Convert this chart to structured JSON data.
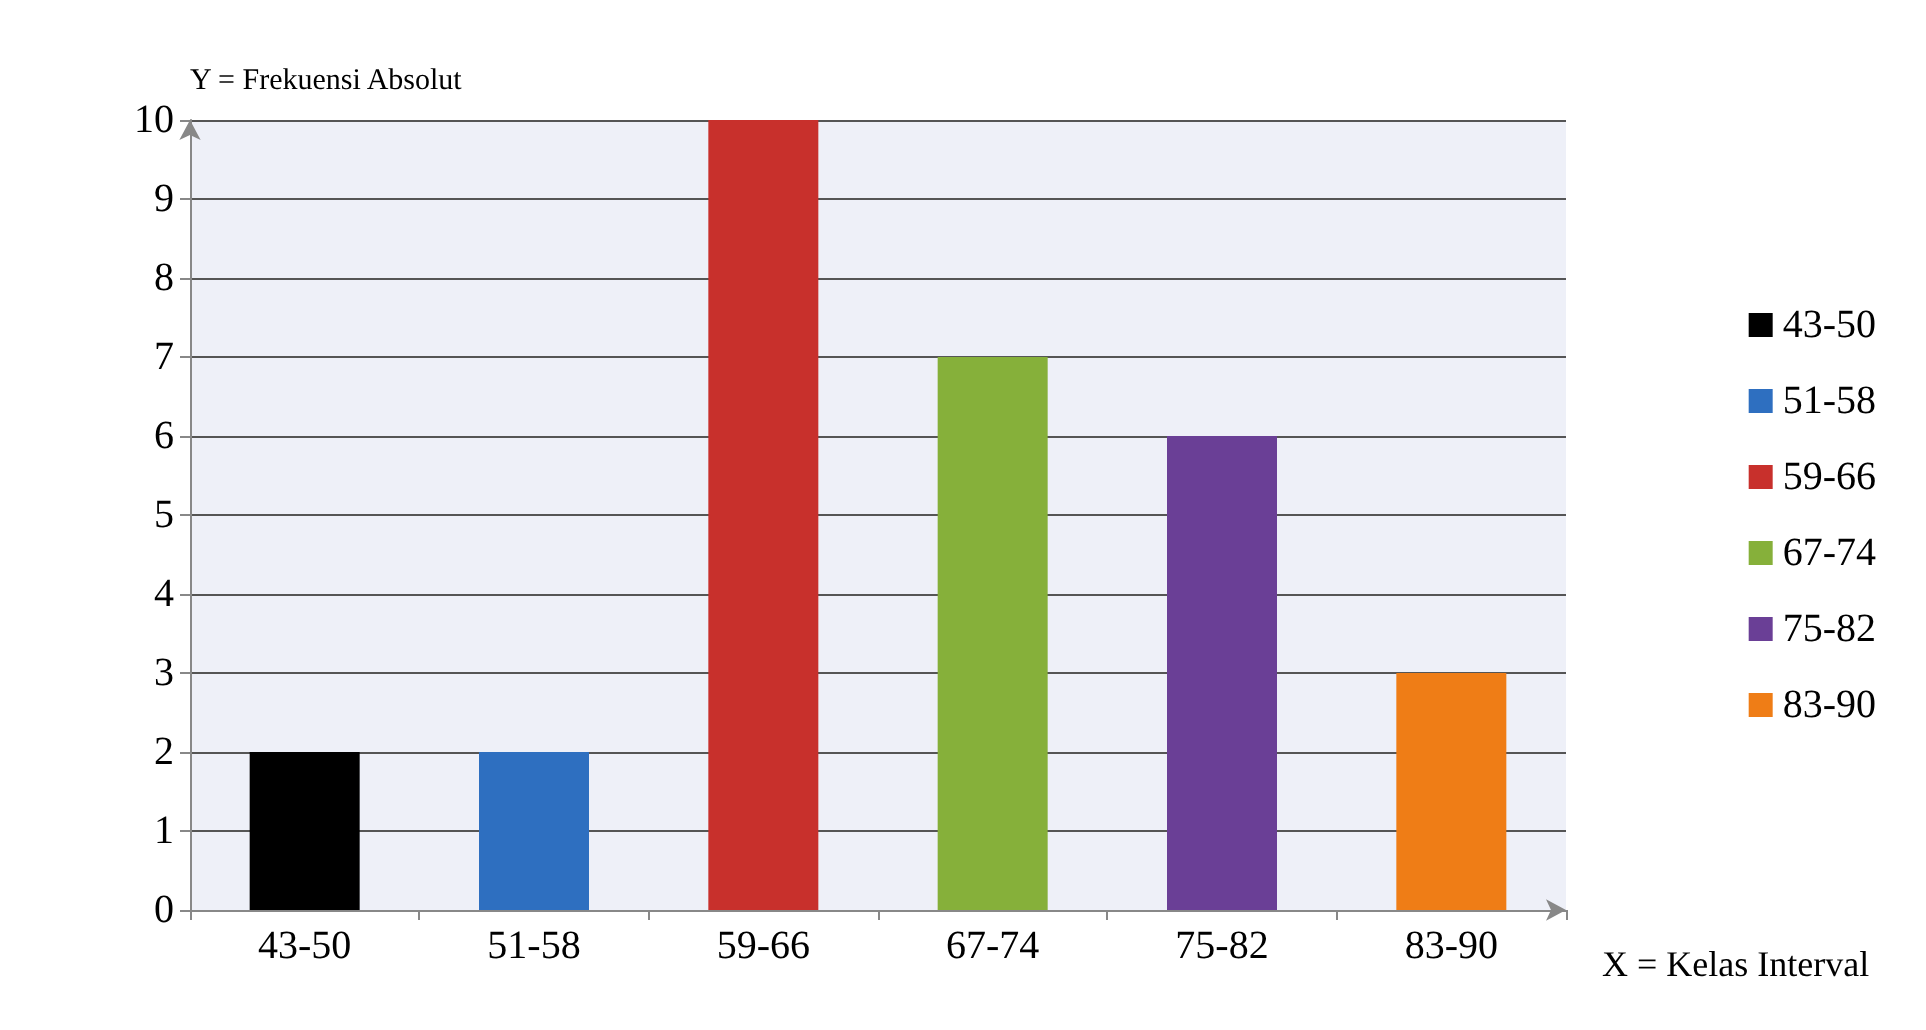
{
  "chart_data": {
    "type": "bar",
    "xlabel": "X = Kelas Interval",
    "ylabel": "Y = Frekuensi Absolut",
    "categories": [
      "43-50",
      "51-58",
      "59-66",
      "67-74",
      "75-82",
      "83-90"
    ],
    "series": [
      {
        "name": "43-50",
        "color": "#000000",
        "values": [
          2,
          null,
          null,
          null,
          null,
          null
        ]
      },
      {
        "name": "51-58",
        "color": "#2e6fc0",
        "values": [
          null,
          2,
          null,
          null,
          null,
          null
        ]
      },
      {
        "name": "59-66",
        "color": "#c8302c",
        "values": [
          null,
          null,
          10,
          null,
          null,
          null
        ]
      },
      {
        "name": "67-74",
        "color": "#86b03a",
        "values": [
          null,
          null,
          null,
          7,
          null,
          null
        ]
      },
      {
        "name": "75-82",
        "color": "#6a3f96",
        "values": [
          null,
          null,
          null,
          null,
          6,
          null
        ]
      },
      {
        "name": "83-90",
        "color": "#ef7d16",
        "values": [
          null,
          null,
          null,
          null,
          null,
          3
        ]
      }
    ],
    "stacked": true,
    "ylim": [
      0,
      10
    ],
    "yticks": [
      0,
      1,
      2,
      3,
      4,
      5,
      6,
      7,
      8,
      9,
      10
    ],
    "grid": "y",
    "legend": "right"
  }
}
